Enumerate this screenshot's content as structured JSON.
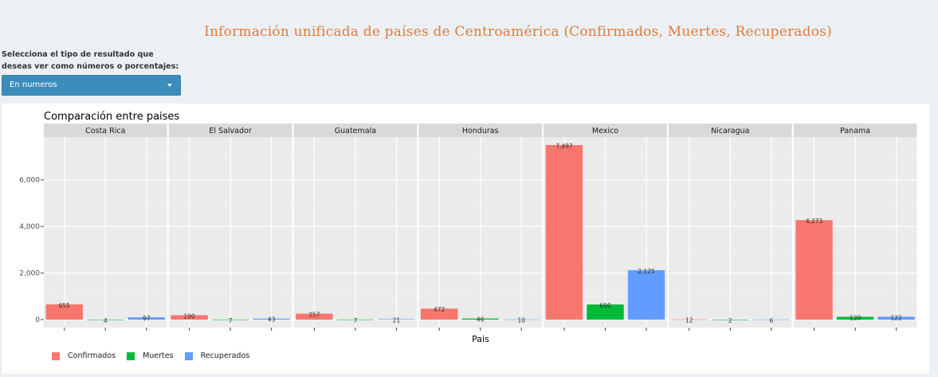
{
  "page": {
    "title": "Información unificada de países de Centroamérica (Confirmados, Muertes, Recuperados)"
  },
  "control": {
    "label": "Selecciona el tipo de resultado que deseas ver como números o porcentajes:",
    "selected": "En numeros",
    "accent_color": "#3c8dbc"
  },
  "chart_data": {
    "type": "bar",
    "title": "Comparación entre paises",
    "xlabel": "Pais",
    "ylabel": "",
    "ylim": [
      0,
      7600
    ],
    "yticks": [
      0,
      2000,
      4000,
      6000
    ],
    "ytick_labels": [
      "0",
      "2,000",
      "4,000",
      "6,000"
    ],
    "grid": true,
    "legend_position": "bottom-left",
    "facets": [
      "Costa Rica",
      "El Salvador",
      "Guatemala",
      "Honduras",
      "Mexico",
      "Nicaragua",
      "Panama"
    ],
    "series": [
      {
        "name": "Confirmados",
        "color": "#f8766d",
        "values": [
          655,
          190,
          257,
          472,
          7497,
          12,
          4273
        ],
        "labels": [
          "655",
          "190",
          "257",
          "472",
          "7,497",
          "12",
          "4,273"
        ]
      },
      {
        "name": "Muertes",
        "color": "#00ba38",
        "values": [
          4,
          7,
          7,
          46,
          650,
          2,
          120
        ],
        "labels": [
          "4",
          "7",
          "7",
          "46",
          "650",
          "2",
          "120"
        ]
      },
      {
        "name": "Recuperados",
        "color": "#619cff",
        "values": [
          97,
          43,
          21,
          10,
          2125,
          6,
          122
        ],
        "labels": [
          "97",
          "43",
          "21",
          "10",
          "2,125",
          "6",
          "122"
        ]
      }
    ]
  }
}
